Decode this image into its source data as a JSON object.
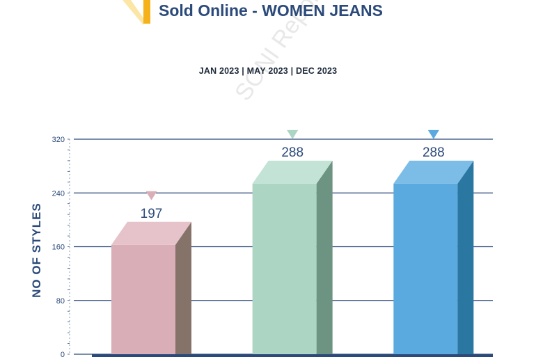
{
  "header": {
    "title": "Sold Online - WOMEN JEANS"
  },
  "watermark": "SONI Reports",
  "chart_data": {
    "type": "bar",
    "title": "Sold Online - WOMEN JEANS",
    "categories": [
      "JAN 2023",
      "MAY 2023",
      "DEC 2023"
    ],
    "category_separator": " | ",
    "values": [
      197,
      288,
      288
    ],
    "ylabel": "NO OF STYLES",
    "ylim": [
      0,
      320
    ],
    "yticks": [
      0,
      80,
      160,
      240,
      320
    ],
    "grid": true,
    "bar_colors": {
      "front": [
        "#d9aeb6",
        "#add5c4",
        "#5aaadf"
      ],
      "side": [
        "#857269",
        "#6d9482",
        "#2a78a2"
      ],
      "top": [
        "#e6c3ca",
        "#c2e3d5",
        "#7cbde8"
      ]
    },
    "label_color": "#2b4a7a",
    "axis_color": "#2b4a7a"
  }
}
